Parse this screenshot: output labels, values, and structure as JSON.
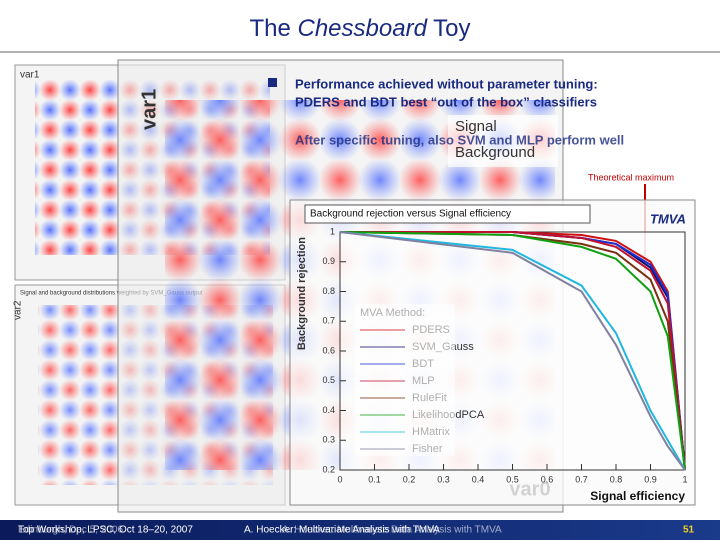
{
  "title": {
    "before": "The ",
    "italic": "Chessboard",
    "after": " Toy"
  },
  "bullets": [
    [
      "Performance achieved without parameter tuning:",
      "PDERS and BDT best “out of the box” classifiers"
    ],
    [
      "After specific tuning, also SVM and MLP perform well"
    ]
  ],
  "annotation": "Theoretical maximum",
  "scatter": {
    "small_title": "Signal and background distributions weighted by SVM_Gauss output",
    "x_label": "var0",
    "y_label": "var1",
    "left_y_label": "var2",
    "legend": [
      "Signal",
      "Background"
    ],
    "logo": "TMVA"
  },
  "chart_data": {
    "type": "line",
    "title": "Background rejection versus Signal efficiency",
    "x_label": "Signal efficiency",
    "y_label": "Background rejection",
    "legend_title": "MVA Method:",
    "x": [
      0,
      0.5,
      0.7,
      0.8,
      0.9,
      0.95,
      1
    ],
    "xlim": [
      0,
      1
    ],
    "xticks": [
      0,
      0.1,
      0.2,
      0.3,
      0.4,
      0.5,
      0.6,
      0.7,
      0.8,
      0.9,
      1
    ],
    "ylim": [
      0.2,
      1
    ],
    "yticks": [
      0.2,
      0.3,
      0.4,
      0.5,
      0.6,
      0.7,
      0.8,
      0.9,
      1
    ],
    "series": [
      {
        "name": "PDERS",
        "color": "#d01010",
        "values": [
          1,
          1,
          0.99,
          0.97,
          0.9,
          0.8,
          0.2
        ]
      },
      {
        "name": "SVM_Gauss",
        "color": "#10106a",
        "values": [
          1,
          1,
          0.98,
          0.96,
          0.88,
          0.78,
          0.2
        ]
      },
      {
        "name": "BDT",
        "color": "#2030d0",
        "values": [
          1,
          1,
          0.98,
          0.96,
          0.89,
          0.79,
          0.2
        ]
      },
      {
        "name": "MLP",
        "color": "#c01030",
        "values": [
          1,
          1,
          0.98,
          0.95,
          0.87,
          0.76,
          0.2
        ]
      },
      {
        "name": "RuleFit",
        "color": "#7a3010",
        "values": [
          1,
          0.99,
          0.96,
          0.93,
          0.84,
          0.7,
          0.2
        ]
      },
      {
        "name": "LikelihoodPCA",
        "color": "#10a010",
        "values": [
          1,
          0.99,
          0.95,
          0.91,
          0.8,
          0.65,
          0.2
        ]
      },
      {
        "name": "HMatrix",
        "color": "#20b8e0",
        "values": [
          1,
          0.94,
          0.82,
          0.66,
          0.4,
          0.3,
          0.2
        ]
      },
      {
        "name": "Fisher",
        "color": "#8080a0",
        "values": [
          1,
          0.93,
          0.8,
          0.62,
          0.38,
          0.28,
          0.2
        ]
      }
    ]
  },
  "footer": {
    "left": [
      "Top Workshop, LPSC, Oct 18–20, 2007",
      "Edinburgh, Dec 5, 2006"
    ],
    "center": [
      "A. Hoecker: Multivariate Analysis with TMVA",
      "A. Hoecker: Multivariate Data Analysis with TMVA"
    ],
    "page": "51"
  }
}
